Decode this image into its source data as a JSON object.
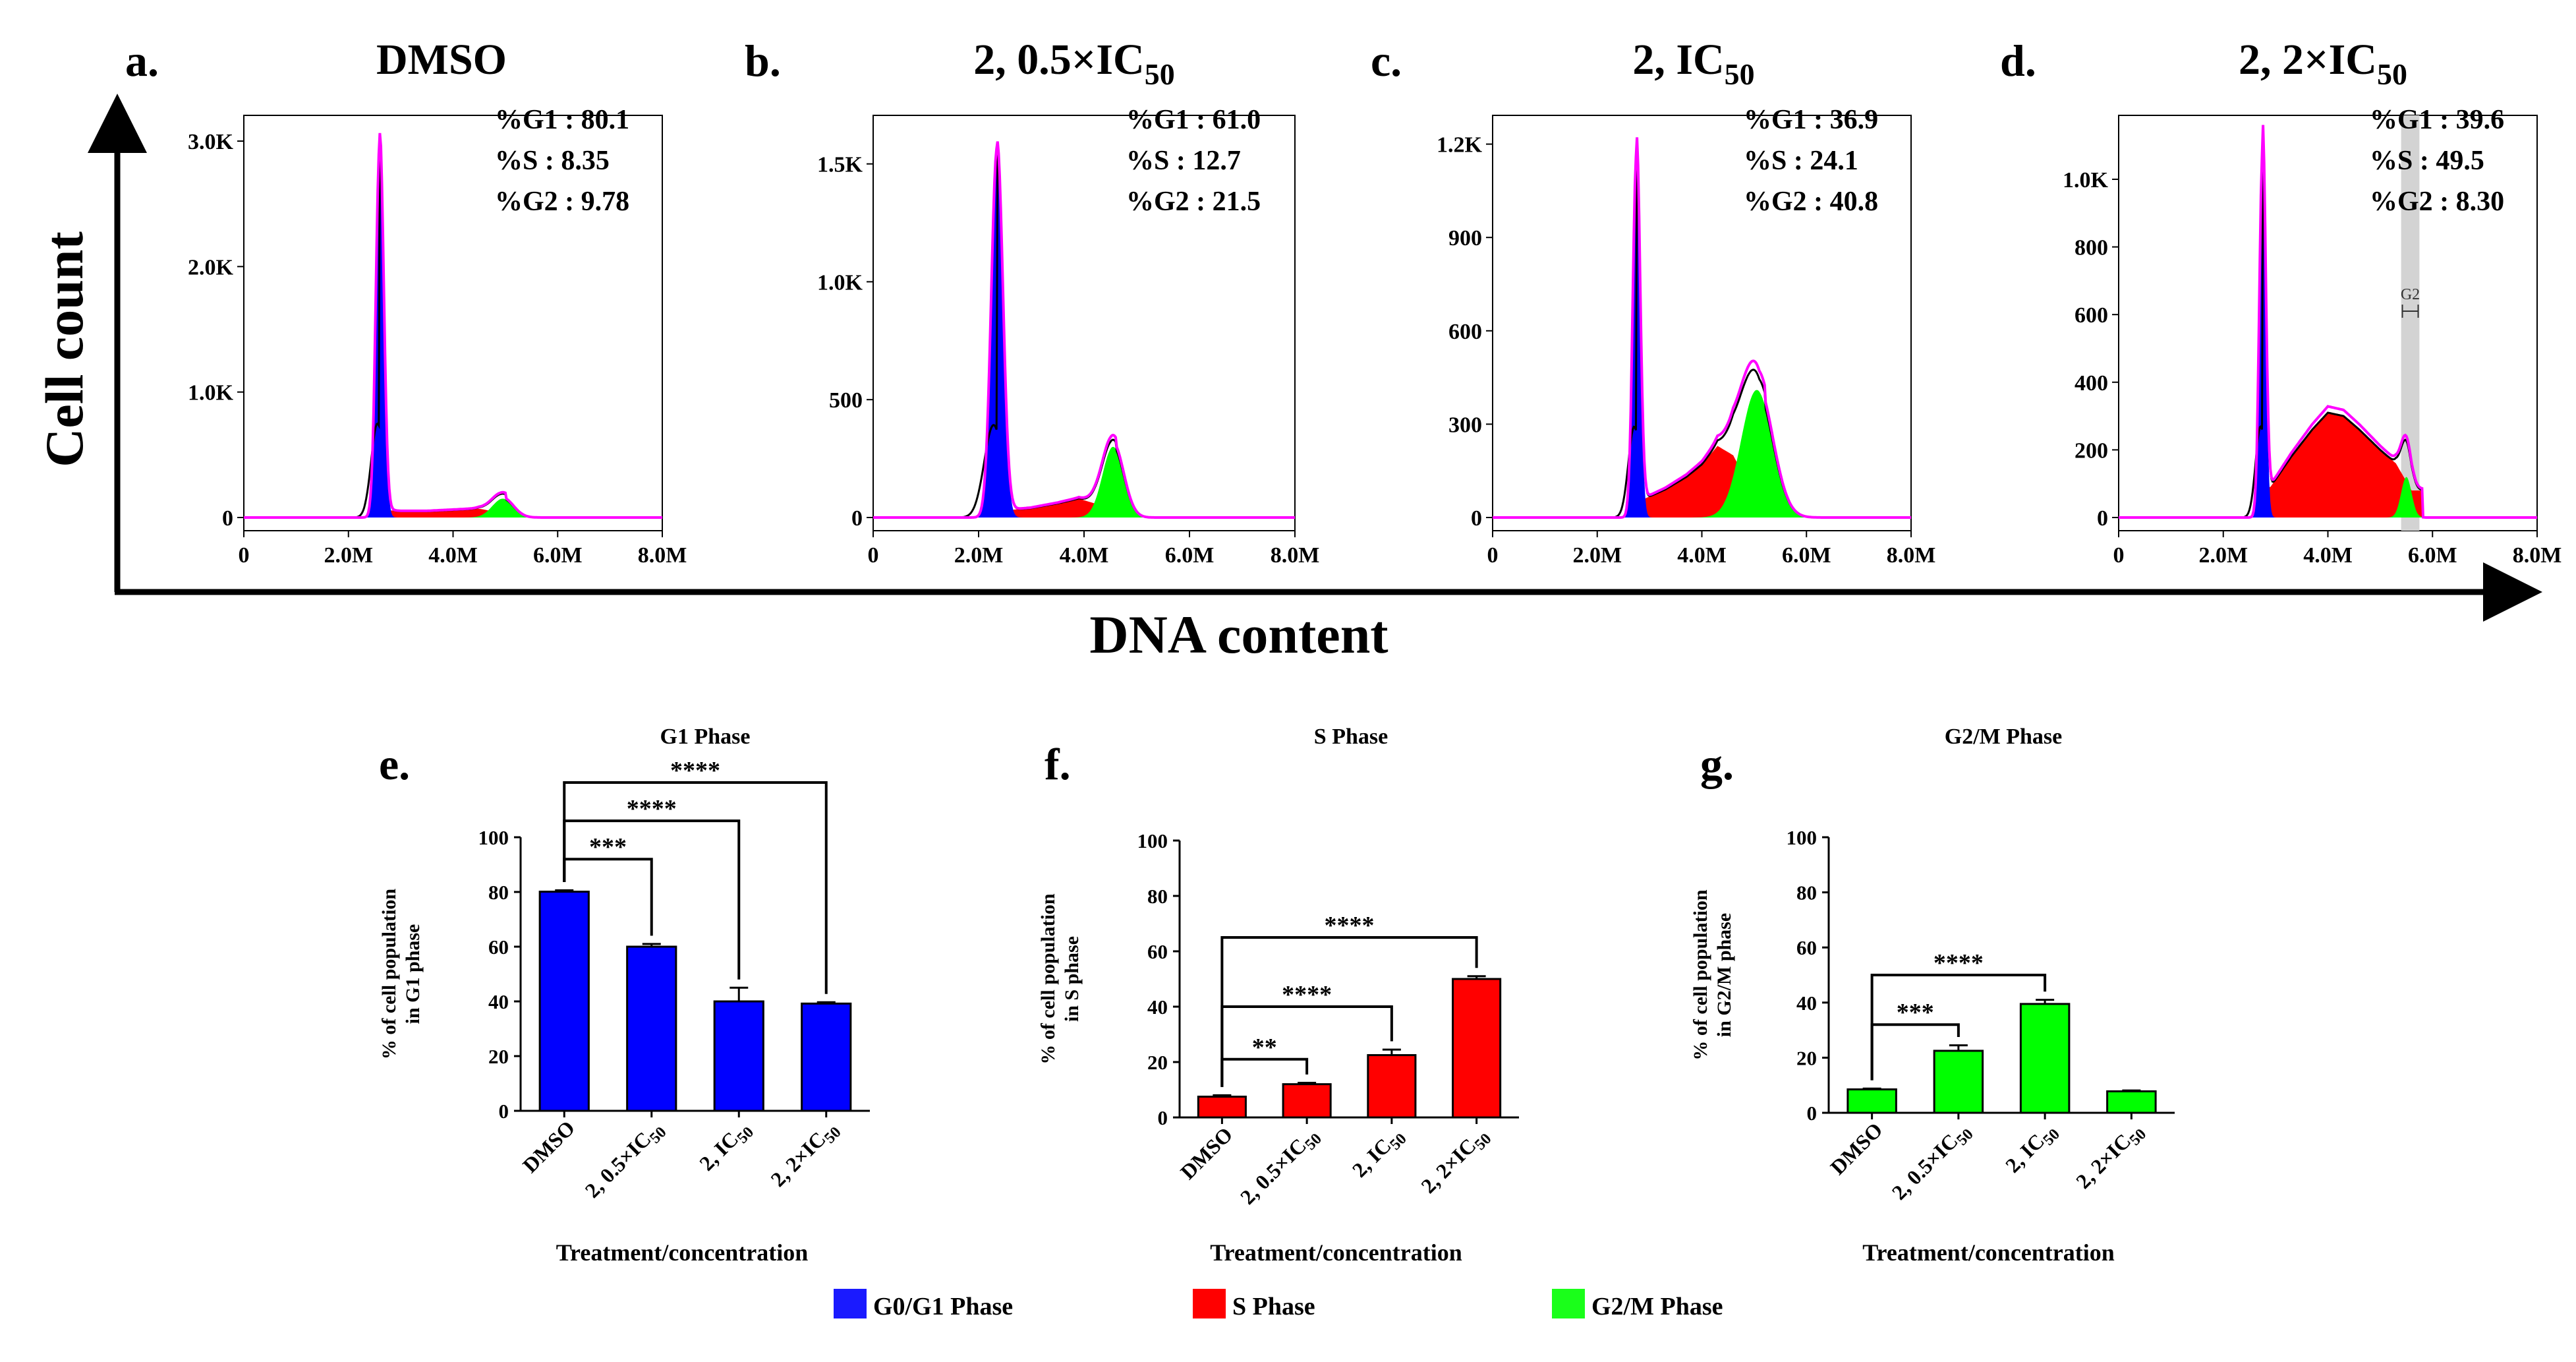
{
  "axis_titles": {
    "cell_count": "Cell count",
    "dna_content": "DNA content"
  },
  "colors": {
    "blue": "#0000ff",
    "red": "#ff0000",
    "green": "#00ff00",
    "magenta": "#ff00ff",
    "black": "#000000",
    "gate": "#d3d3d3"
  },
  "legend": [
    {
      "label": "G0/G1 Phase",
      "color": "#1a1aff"
    },
    {
      "label": "S Phase",
      "color": "#ff0000"
    },
    {
      "label": "G2/M Phase",
      "color": "#1aff1a"
    }
  ],
  "chart_data": [
    {
      "type": "area",
      "panel": "a.",
      "title": "DMSO",
      "title_sub": "",
      "xlim": [
        0,
        8000000
      ],
      "ylim": [
        0,
        3100
      ],
      "xticks": [
        0,
        2000000,
        4000000,
        6000000,
        8000000
      ],
      "xtick_labels": [
        "0",
        "2.0M",
        "4.0M",
        "6.0M",
        "8.0M"
      ],
      "yticks": [
        0,
        1000,
        2000,
        3000
      ],
      "ytick_labels": [
        "0",
        "1.0K",
        "2.0K",
        "3.0K"
      ],
      "stats": [
        "%G1 : 80.1",
        "%S : 8.35",
        "%G2 : 9.78"
      ],
      "g1": {
        "mu": 2600000,
        "sigma": 75000,
        "peak": 3000
      },
      "s": {
        "start": 2600000,
        "end": 5000000,
        "points": [
          [
            2700000,
            60
          ],
          [
            3000000,
            50
          ],
          [
            3500000,
            50
          ],
          [
            4000000,
            60
          ],
          [
            4500000,
            70
          ],
          [
            4900000,
            40
          ]
        ]
      },
      "g2": {
        "mu": 4950000,
        "sigma": 200000,
        "peak": 150
      },
      "gate": null
    },
    {
      "type": "area",
      "panel": "b.",
      "title": "2, 0.5×IC",
      "title_sub": "50",
      "xlim": [
        0,
        8000000
      ],
      "ylim": [
        0,
        1650
      ],
      "xticks": [
        0,
        2000000,
        4000000,
        6000000,
        8000000
      ],
      "xtick_labels": [
        "0",
        "2.0M",
        "4.0M",
        "6.0M",
        "8.0M"
      ],
      "yticks": [
        0,
        500,
        1000,
        1500
      ],
      "ytick_labels": [
        "0",
        "500",
        "1.0K",
        "1.5K"
      ],
      "stats": [
        "%G1 : 61.0",
        "%S : 12.7",
        "%G2 : 21.5"
      ],
      "g1": {
        "mu": 2350000,
        "sigma": 110000,
        "peak": 1570
      },
      "s": {
        "start": 2350000,
        "end": 4600000,
        "points": [
          [
            2500000,
            30
          ],
          [
            3000000,
            40
          ],
          [
            3500000,
            60
          ],
          [
            3900000,
            80
          ],
          [
            4200000,
            60
          ],
          [
            4500000,
            30
          ]
        ]
      },
      "g2": {
        "mu": 4550000,
        "sigma": 200000,
        "peak": 300
      },
      "gate": null
    },
    {
      "type": "area",
      "panel": "c.",
      "title": "2, IC",
      "title_sub": "50",
      "xlim": [
        0,
        8000000
      ],
      "ylim": [
        0,
        1250
      ],
      "xticks": [
        0,
        2000000,
        4000000,
        6000000,
        8000000
      ],
      "xtick_labels": [
        "0",
        "2.0M",
        "4.0M",
        "6.0M",
        "8.0M"
      ],
      "yticks": [
        0,
        300,
        600,
        900,
        1200
      ],
      "ytick_labels": [
        "0",
        "300",
        "600",
        "900",
        "1.2K"
      ],
      "stats": [
        "%G1 : 36.9",
        "%S : 24.1",
        "%G2 : 40.8"
      ],
      "g1": {
        "mu": 2750000,
        "sigma": 70000,
        "peak": 1170
      },
      "s": {
        "start": 2750000,
        "end": 5200000,
        "points": [
          [
            2900000,
            60
          ],
          [
            3300000,
            90
          ],
          [
            3700000,
            130
          ],
          [
            4000000,
            170
          ],
          [
            4300000,
            230
          ],
          [
            4600000,
            200
          ],
          [
            4900000,
            100
          ],
          [
            5100000,
            40
          ]
        ]
      },
      "g2": {
        "mu": 5050000,
        "sigma": 300000,
        "peak": 410
      },
      "gate": null
    },
    {
      "type": "area",
      "panel": "d.",
      "title": "2, 2×IC",
      "title_sub": "50",
      "xlim": [
        0,
        8000000
      ],
      "ylim": [
        0,
        1150
      ],
      "xticks": [
        0,
        2000000,
        4000000,
        6000000,
        8000000
      ],
      "xtick_labels": [
        "0",
        "2.0M",
        "4.0M",
        "6.0M",
        "8.0M"
      ],
      "yticks": [
        0,
        200,
        400,
        600,
        800,
        1000
      ],
      "ytick_labels": [
        "0",
        "200",
        "400",
        "600",
        "800",
        "1.0K"
      ],
      "stats": [
        "%G1 : 39.6",
        "%S : 49.5",
        "%G2 : 8.30"
      ],
      "g1": {
        "mu": 2750000,
        "sigma": 60000,
        "peak": 1080
      },
      "s": {
        "start": 2750000,
        "end": 5800000,
        "points": [
          [
            2900000,
            90
          ],
          [
            3300000,
            180
          ],
          [
            3700000,
            260
          ],
          [
            4000000,
            310
          ],
          [
            4300000,
            300
          ],
          [
            4600000,
            260
          ],
          [
            5000000,
            200
          ],
          [
            5300000,
            160
          ],
          [
            5600000,
            80
          ]
        ]
      },
      "g2": {
        "mu": 5500000,
        "sigma": 100000,
        "peak": 120
      },
      "gate": {
        "label": "G2",
        "x0": 5400000,
        "x1": 5750000,
        "marker_y": 610
      }
    },
    {
      "type": "bar",
      "panel": "e.",
      "title": "G1 Phase",
      "ylabel": [
        "% of cell population",
        "in G1 phase"
      ],
      "xlabel": "Treatment/concentration",
      "ylim": [
        0,
        100
      ],
      "yticks": [
        0,
        20,
        40,
        60,
        80,
        100
      ],
      "categories": [
        {
          "main": "DMSO",
          "sub": ""
        },
        {
          "main": "2, 0.5×IC",
          "sub": "50"
        },
        {
          "main": "2, IC",
          "sub": "50"
        },
        {
          "main": "2, 2×IC",
          "sub": "50"
        }
      ],
      "values": [
        80.1,
        60.0,
        40.0,
        39.2
      ],
      "errors": [
        0.5,
        1.0,
        5.0,
        0.5
      ],
      "color": "#0000ff",
      "comparisons": [
        {
          "from": 0,
          "to": 1,
          "label": "***",
          "y": 92
        },
        {
          "from": 0,
          "to": 2,
          "label": "****",
          "y": 106
        },
        {
          "from": 0,
          "to": 3,
          "label": "****",
          "y": 120
        }
      ]
    },
    {
      "type": "bar",
      "panel": "f.",
      "title": "S Phase",
      "ylabel": [
        "% of cell population",
        "in S phase"
      ],
      "xlabel": "Treatment/concentration",
      "ylim": [
        0,
        100
      ],
      "yticks": [
        0,
        20,
        40,
        60,
        80,
        100
      ],
      "categories": [
        {
          "main": "DMSO",
          "sub": ""
        },
        {
          "main": "2, 0.5×IC",
          "sub": "50"
        },
        {
          "main": "2, IC",
          "sub": "50"
        },
        {
          "main": "2, 2×IC",
          "sub": "50"
        }
      ],
      "values": [
        7.5,
        12.0,
        22.5,
        50.0
      ],
      "errors": [
        0.5,
        0.5,
        2.0,
        1.0
      ],
      "color": "#ff0000",
      "comparisons": [
        {
          "from": 0,
          "to": 1,
          "label": "**",
          "y": 21
        },
        {
          "from": 0,
          "to": 2,
          "label": "****",
          "y": 40
        },
        {
          "from": 0,
          "to": 3,
          "label": "****",
          "y": 65
        }
      ]
    },
    {
      "type": "bar",
      "panel": "g.",
      "title": "G2/M Phase",
      "ylabel": [
        "% of cell population",
        "in G2/M phase"
      ],
      "xlabel": "Treatment/concentration",
      "ylim": [
        0,
        100
      ],
      "yticks": [
        0,
        20,
        40,
        60,
        80,
        100
      ],
      "categories": [
        {
          "main": "DMSO",
          "sub": ""
        },
        {
          "main": "2, 0.5×IC",
          "sub": "50"
        },
        {
          "main": "2, IC",
          "sub": "50"
        },
        {
          "main": "2, 2×IC",
          "sub": "50"
        }
      ],
      "values": [
        8.5,
        22.5,
        39.5,
        7.8
      ],
      "errors": [
        0.3,
        2.0,
        1.5,
        0.3
      ],
      "color": "#00ff00",
      "comparisons": [
        {
          "from": 0,
          "to": 1,
          "label": "***",
          "y": 32
        },
        {
          "from": 0,
          "to": 2,
          "label": "****",
          "y": 50
        }
      ]
    }
  ]
}
